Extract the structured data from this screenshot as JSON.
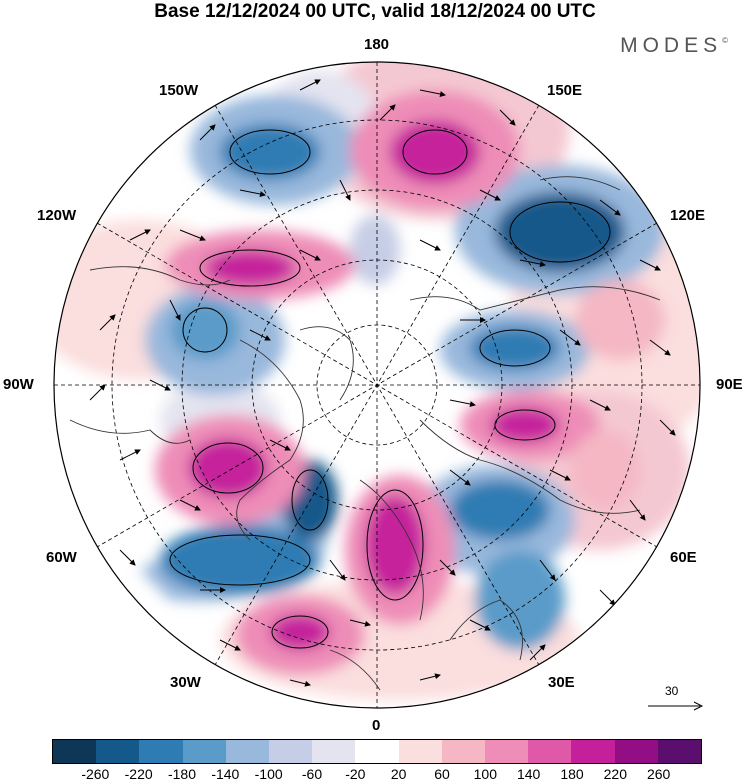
{
  "header": {
    "title": "Base 12/12/2024 00 UTC, valid 18/12/2024 00 UTC",
    "brand": "MODES",
    "brand_mark": "©"
  },
  "map": {
    "projection": "north-polar-stereographic",
    "longitude_labels": {
      "top": "180",
      "top_left": "150W",
      "top_right": "150E",
      "upper_left": "120W",
      "upper_right": "120E",
      "left": "90W",
      "right": "90E",
      "lower_left": "60W",
      "lower_right": "60E",
      "bottom_left": "30W",
      "bottom_right": "30E",
      "bottom": "0"
    },
    "reference_vector": "30"
  },
  "colorbar": {
    "colors": [
      "#0d3657",
      "#15588a",
      "#2f7bb3",
      "#5a9bc9",
      "#98b8dc",
      "#c6cde6",
      "#e4e4f0",
      "#ffffff",
      "#fbdede",
      "#f4b7c3",
      "#ee8db7",
      "#e059a9",
      "#c5209c",
      "#930e85",
      "#5a0e6e"
    ],
    "ticks": [
      "-260",
      "-220",
      "-180",
      "-140",
      "-100",
      "-60",
      "-20",
      "20",
      "60",
      "100",
      "140",
      "180",
      "220",
      "260"
    ]
  }
}
